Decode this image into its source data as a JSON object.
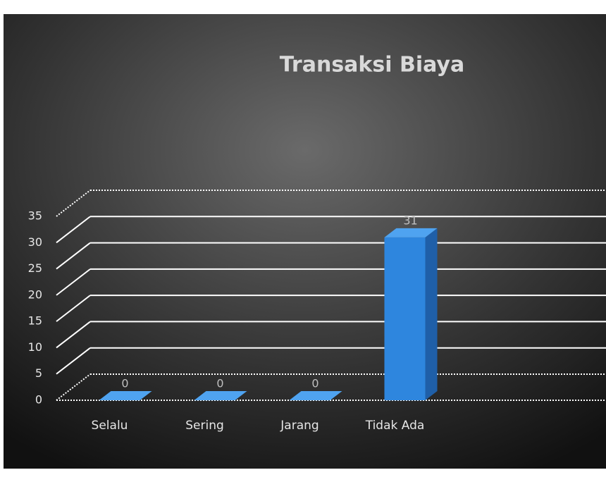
{
  "chart_data": {
    "type": "bar",
    "title": "Transaksi Biaya",
    "categories": [
      "Selalu",
      "Sering",
      "Jarang",
      "Tidak Ada"
    ],
    "values": [
      0,
      0,
      0,
      31
    ],
    "color": "#2e86de",
    "ylim": [
      0,
      35
    ],
    "yticks": [
      0,
      5,
      10,
      15,
      20,
      25,
      30,
      35
    ],
    "grid": true
  }
}
